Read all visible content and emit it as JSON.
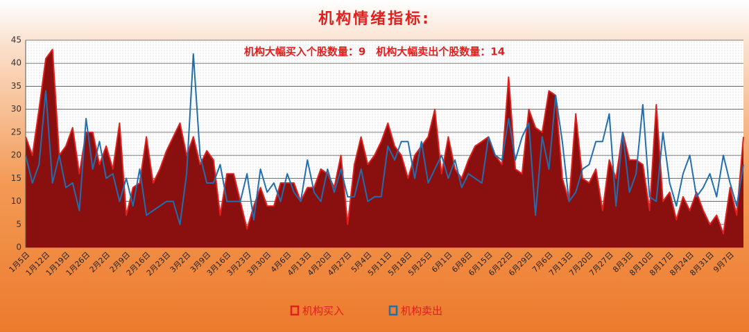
{
  "chart_data": {
    "type": "line_area",
    "title": "机构情绪指标:",
    "subtitle": "机构大幅买入个股数量：9　机构大幅卖出个股数量：14",
    "categories": [
      "1月5日",
      null,
      null,
      "1月12日",
      null,
      null,
      "1月19日",
      null,
      null,
      "1月26日",
      null,
      null,
      "2月2日",
      null,
      null,
      "2月9日",
      null,
      null,
      "2月16日",
      null,
      null,
      "2月23日",
      null,
      null,
      "3月2日",
      null,
      null,
      "3月9日",
      null,
      null,
      "3月16日",
      null,
      null,
      "3月23日",
      null,
      null,
      "3月30日",
      null,
      null,
      "4月6日",
      null,
      null,
      "4月13日",
      null,
      null,
      "4月20日",
      null,
      null,
      "4月27日",
      null,
      null,
      "5月4日",
      null,
      null,
      "5月11日",
      null,
      null,
      "5月18日",
      null,
      null,
      "5月25日",
      null,
      null,
      "6月1日",
      null,
      null,
      "6月8日",
      null,
      null,
      "6月15日",
      null,
      null,
      "6月22日",
      null,
      null,
      "6月29日",
      null,
      null,
      "7月6日",
      null,
      null,
      "7月13日",
      null,
      null,
      "7月20日",
      null,
      null,
      "7月27日",
      null,
      null,
      "8月3日",
      null,
      null,
      "8月10日",
      null,
      null,
      "8月17日",
      null,
      null,
      "8月24日",
      null,
      null,
      "8月31日",
      null,
      null,
      "9月7日",
      null,
      null
    ],
    "series": [
      {
        "name": "机构买入",
        "color": "#e0201c",
        "fill": true,
        "values": [
          24,
          20,
          30,
          41,
          43,
          20,
          22,
          26,
          16,
          25,
          25,
          18,
          22,
          17,
          27,
          7,
          13,
          14,
          24,
          14,
          17,
          21,
          24,
          27,
          20,
          24,
          18,
          21,
          19,
          7,
          16,
          16,
          10,
          4,
          9,
          13,
          9,
          9,
          14,
          14,
          14,
          10,
          13,
          13,
          17,
          16,
          13,
          20,
          5,
          18,
          24,
          18,
          20,
          23,
          27,
          22,
          20,
          15,
          20,
          22,
          24,
          30,
          16,
          24,
          17,
          15,
          19,
          22,
          23,
          24,
          20,
          18,
          37,
          17,
          16,
          30,
          26,
          25,
          34,
          33,
          15,
          10,
          29,
          15,
          14,
          17,
          8,
          19,
          15,
          25,
          19,
          19,
          18,
          8,
          31,
          10,
          12,
          6,
          11,
          8,
          12,
          8,
          5,
          7,
          3,
          13,
          7,
          24
        ]
      },
      {
        "name": "机构卖出",
        "color": "#1f6eb0",
        "fill": false,
        "values": [
          20,
          14,
          18,
          34,
          14,
          20,
          13,
          14,
          8,
          28,
          17,
          23,
          15,
          16,
          10,
          15,
          9,
          17,
          7,
          8,
          9,
          10,
          10,
          5,
          16,
          42,
          20,
          14,
          14,
          18,
          10,
          10,
          10,
          16,
          6,
          17,
          12,
          14,
          10,
          16,
          12,
          10,
          19,
          12,
          10,
          17,
          12,
          17,
          11,
          11,
          17,
          10,
          11,
          11,
          22,
          19,
          23,
          23,
          15,
          23,
          14,
          17,
          20,
          15,
          19,
          13,
          16,
          15,
          14,
          24,
          20,
          19,
          28,
          19,
          24,
          27,
          7,
          24,
          17,
          33,
          23,
          10,
          12,
          17,
          18,
          23,
          23,
          29,
          9,
          25,
          12,
          16,
          31,
          11,
          10,
          25,
          14,
          9,
          16,
          20,
          11,
          13,
          16,
          11,
          20,
          14,
          9,
          18
        ]
      }
    ],
    "ylim": [
      0,
      45
    ],
    "yticks": [
      0,
      5,
      10,
      15,
      20,
      25,
      30,
      35,
      40,
      45
    ],
    "grid": true
  }
}
